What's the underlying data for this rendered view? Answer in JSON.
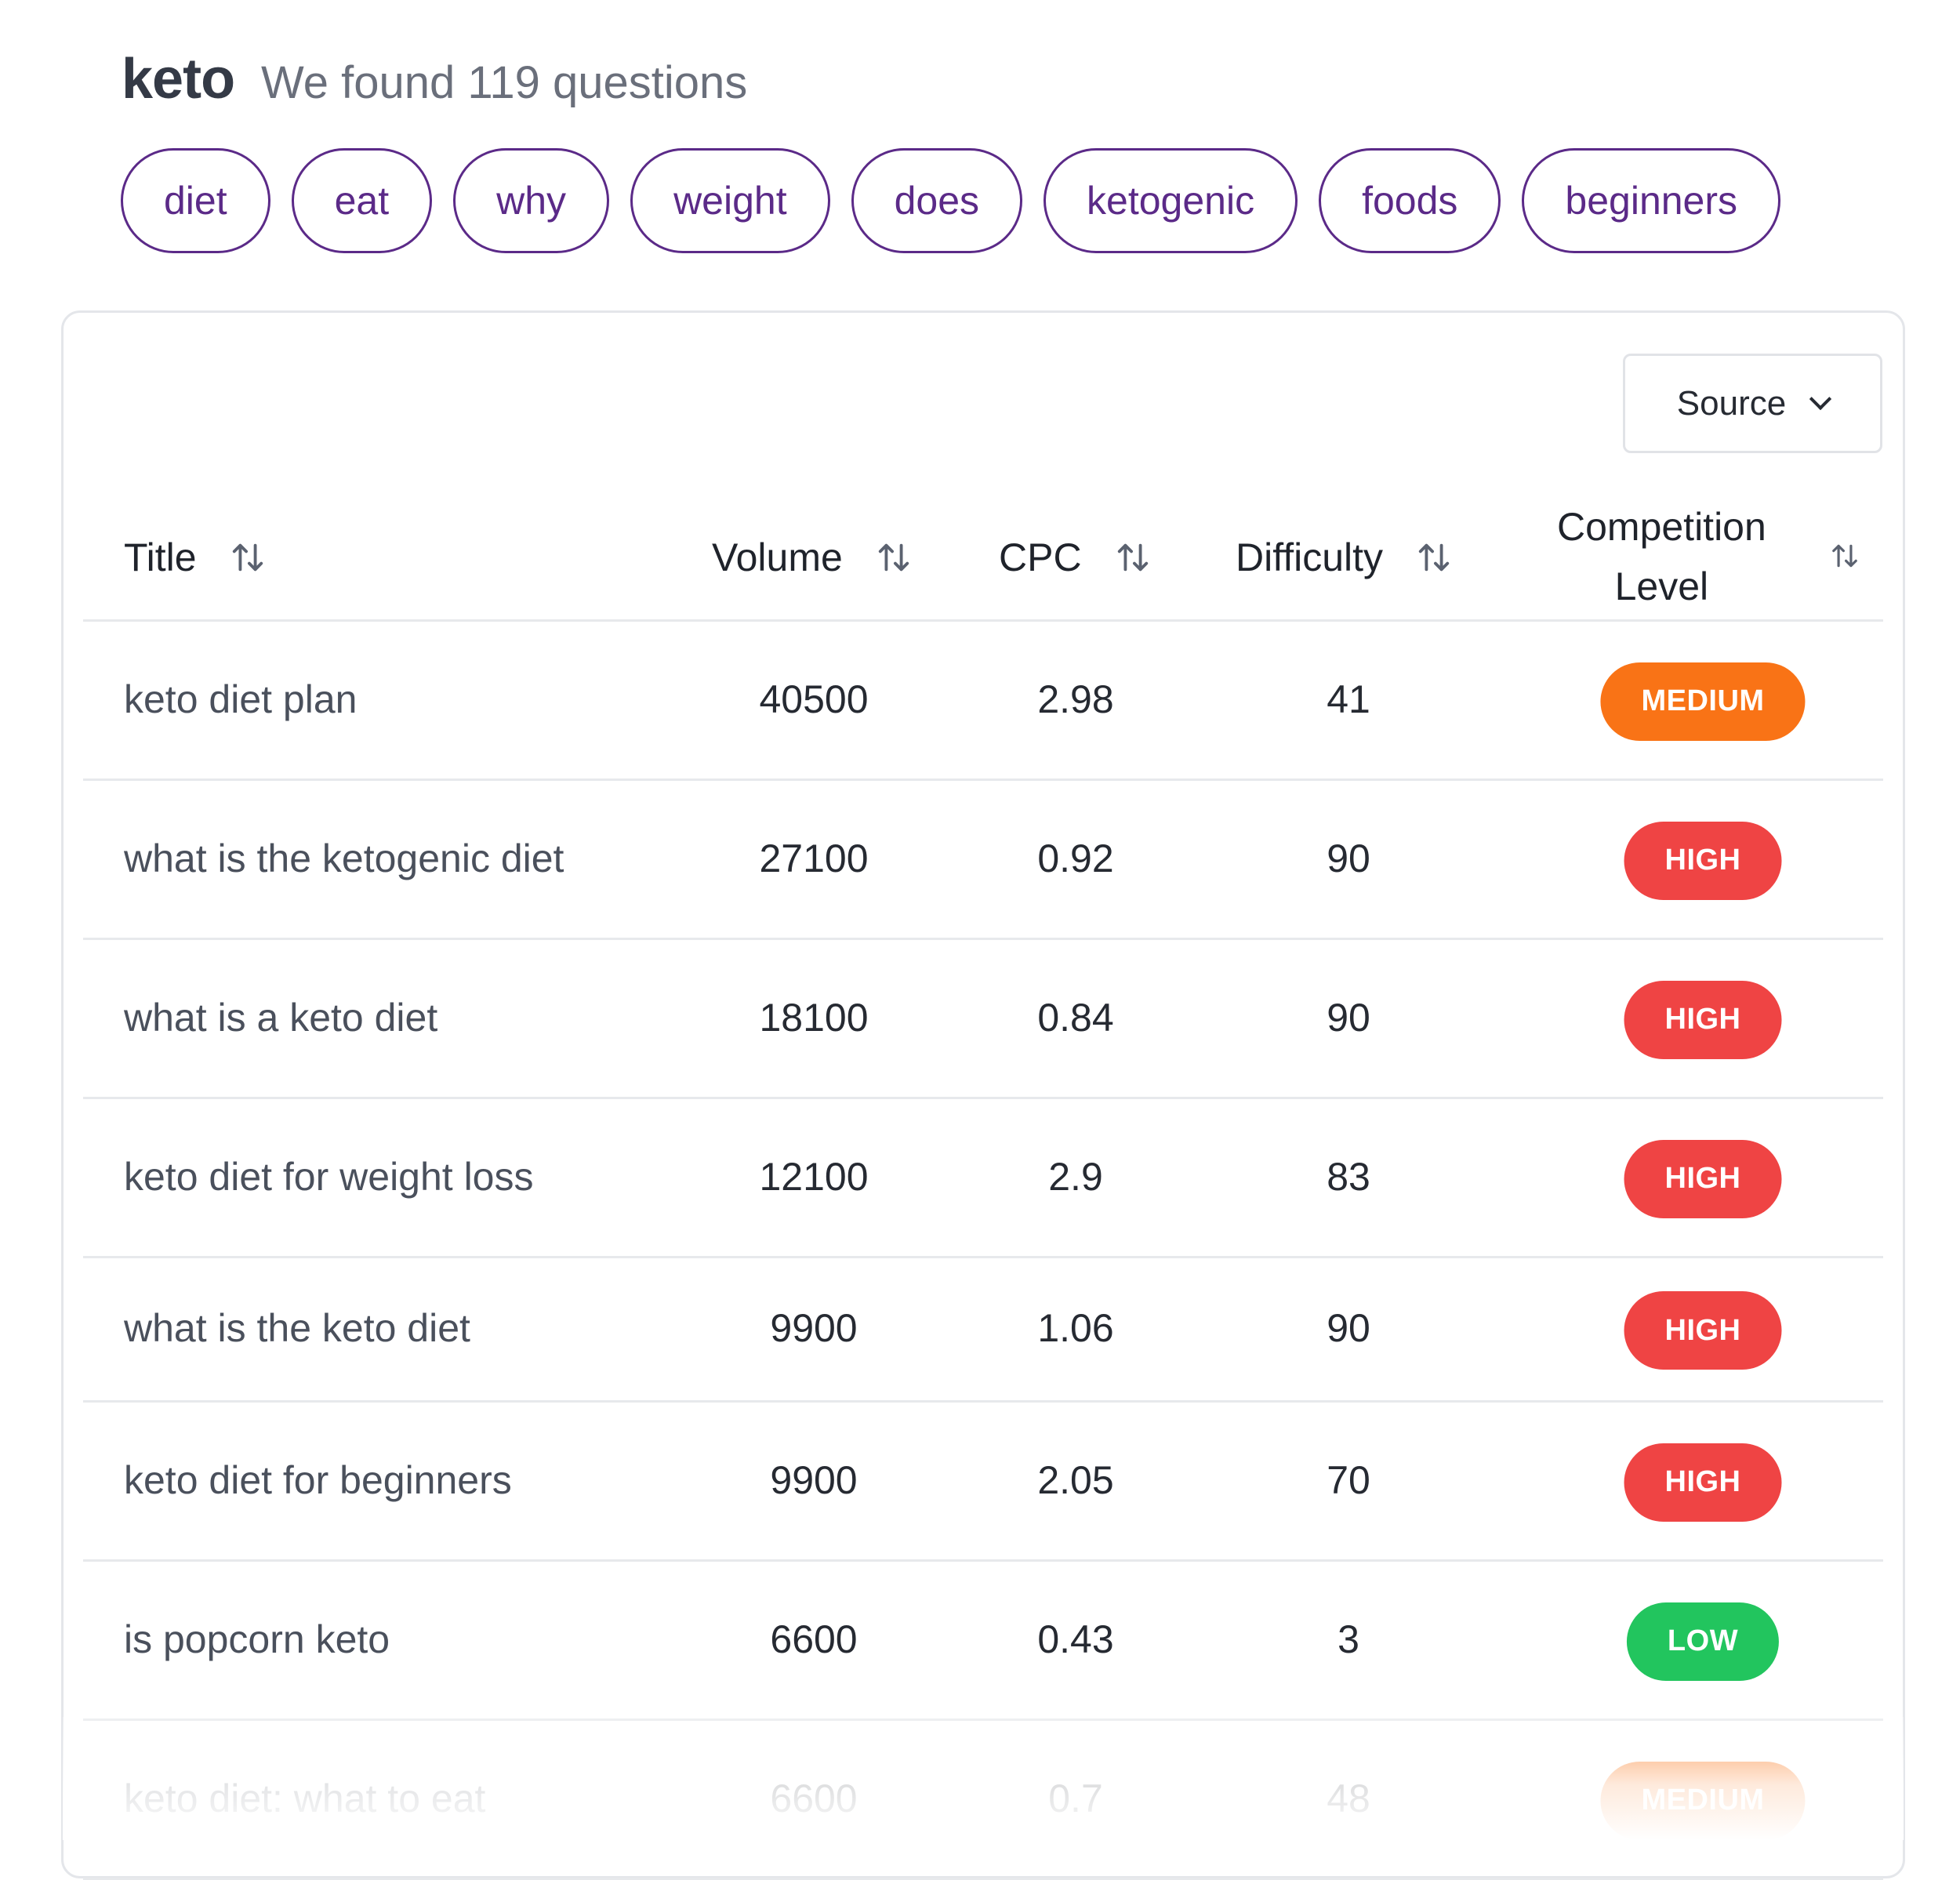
{
  "header": {
    "keyword": "keto",
    "subtitle": "We found 119 questions"
  },
  "chips": [
    "diet",
    "eat",
    "why",
    "weight",
    "does",
    "ketogenic",
    "foods",
    "beginners"
  ],
  "source_dropdown": {
    "label": "Source",
    "icon": "chevron-down-icon"
  },
  "table": {
    "columns": {
      "title": "Title",
      "volume": "Volume",
      "cpc": "CPC",
      "difficulty": "Difficulty",
      "competition_line1": "Competition",
      "competition_line2": "Level"
    },
    "sort_icon": "sort-arrows-icon",
    "rows": [
      {
        "title": "keto diet plan",
        "volume": "40500",
        "cpc": "2.98",
        "difficulty": "41",
        "competition": "MEDIUM"
      },
      {
        "title": "what is the ketogenic diet",
        "volume": "27100",
        "cpc": "0.92",
        "difficulty": "90",
        "competition": "HIGH"
      },
      {
        "title": "what is a keto diet",
        "volume": "18100",
        "cpc": "0.84",
        "difficulty": "90",
        "competition": "HIGH"
      },
      {
        "title": "keto diet for weight loss",
        "volume": "12100",
        "cpc": "2.9",
        "difficulty": "83",
        "competition": "HIGH"
      },
      {
        "title": "what is the keto diet",
        "volume": "9900",
        "cpc": "1.06",
        "difficulty": "90",
        "competition": "HIGH"
      },
      {
        "title": "keto diet for beginners",
        "volume": "9900",
        "cpc": "2.05",
        "difficulty": "70",
        "competition": "HIGH"
      },
      {
        "title": "is popcorn keto",
        "volume": "6600",
        "cpc": "0.43",
        "difficulty": "3",
        "competition": "LOW"
      },
      {
        "title": "keto diet: what to eat",
        "volume": "6600",
        "cpc": "0.7",
        "difficulty": "48",
        "competition": "MEDIUM"
      }
    ]
  },
  "colors": {
    "chip_border": "#5b2a88",
    "medium": "#f97316",
    "high": "#ef4444",
    "low": "#22c55e"
  }
}
